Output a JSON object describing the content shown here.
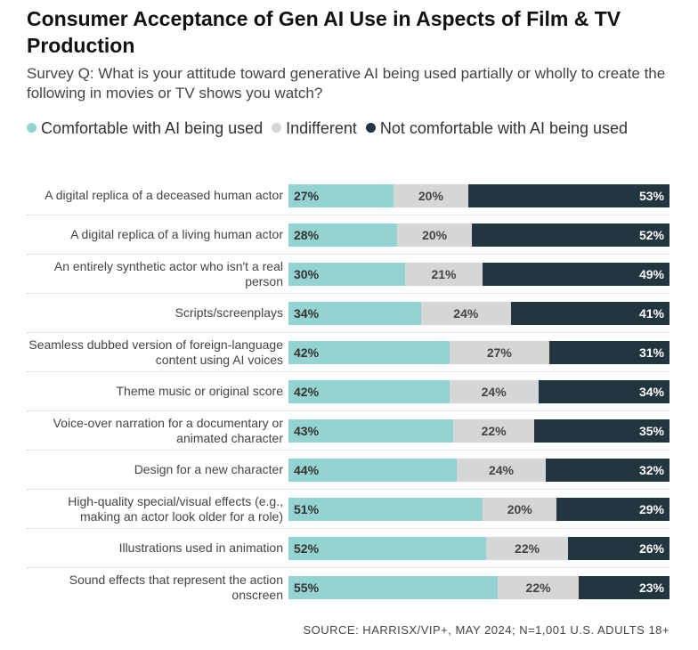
{
  "chart_data": {
    "type": "bar",
    "orientation": "horizontal",
    "stacked": true,
    "title": "Consumer Acceptance of Gen AI Use in Aspects of Film & TV Production",
    "subtitle": "Survey Q: What is your attitude toward generative AI being used partially or wholly to create the following in movies or TV shows you watch?",
    "source": "SOURCE: HARRISX/VIP+, MAY 2024; N=1,001 U.S. ADULTS 18+",
    "categories": [
      "A digital replica of a deceased human actor",
      "A digital replica of a living human actor",
      "An entirely synthetic actor who isn't a real person",
      "Scripts/screenplays",
      "Seamless dubbed version of foreign-language content using AI voices",
      "Theme music or original score",
      "Voice-over narration for a documentary or animated character",
      "Design for a new character",
      "High-quality special/visual effects (e.g., making an actor look older for a role)",
      "Illustrations used in animation",
      "Sound effects that represent the action onscreen"
    ],
    "series": [
      {
        "name": "Comfortable with AI being used",
        "color": "#94d3d0",
        "values": [
          27,
          28,
          30,
          34,
          42,
          42,
          43,
          44,
          51,
          52,
          55
        ],
        "value_labels": [
          "27%",
          "28%",
          "30%",
          "34%",
          "42%",
          "42%",
          "43%",
          "44%",
          "51%",
          "52%",
          "55%"
        ]
      },
      {
        "name": "Indifferent",
        "color": "#d4d6d8",
        "values": [
          20,
          20,
          21,
          24,
          27,
          24,
          22,
          24,
          20,
          22,
          22
        ],
        "value_labels": [
          "20%",
          "20%",
          "21%",
          "24%",
          "27%",
          "24%",
          "22%",
          "24%",
          "20%",
          "22%",
          "22%"
        ]
      },
      {
        "name": "Not comfortable with AI being used",
        "color": "#233640",
        "values": [
          53,
          52,
          49,
          41,
          31,
          34,
          35,
          32,
          29,
          26,
          23
        ],
        "value_labels": [
          "53%",
          "52%",
          "49%",
          "41%",
          "31%",
          "34%",
          "35%",
          "32%",
          "29%",
          "26%",
          "23%"
        ]
      }
    ]
  }
}
